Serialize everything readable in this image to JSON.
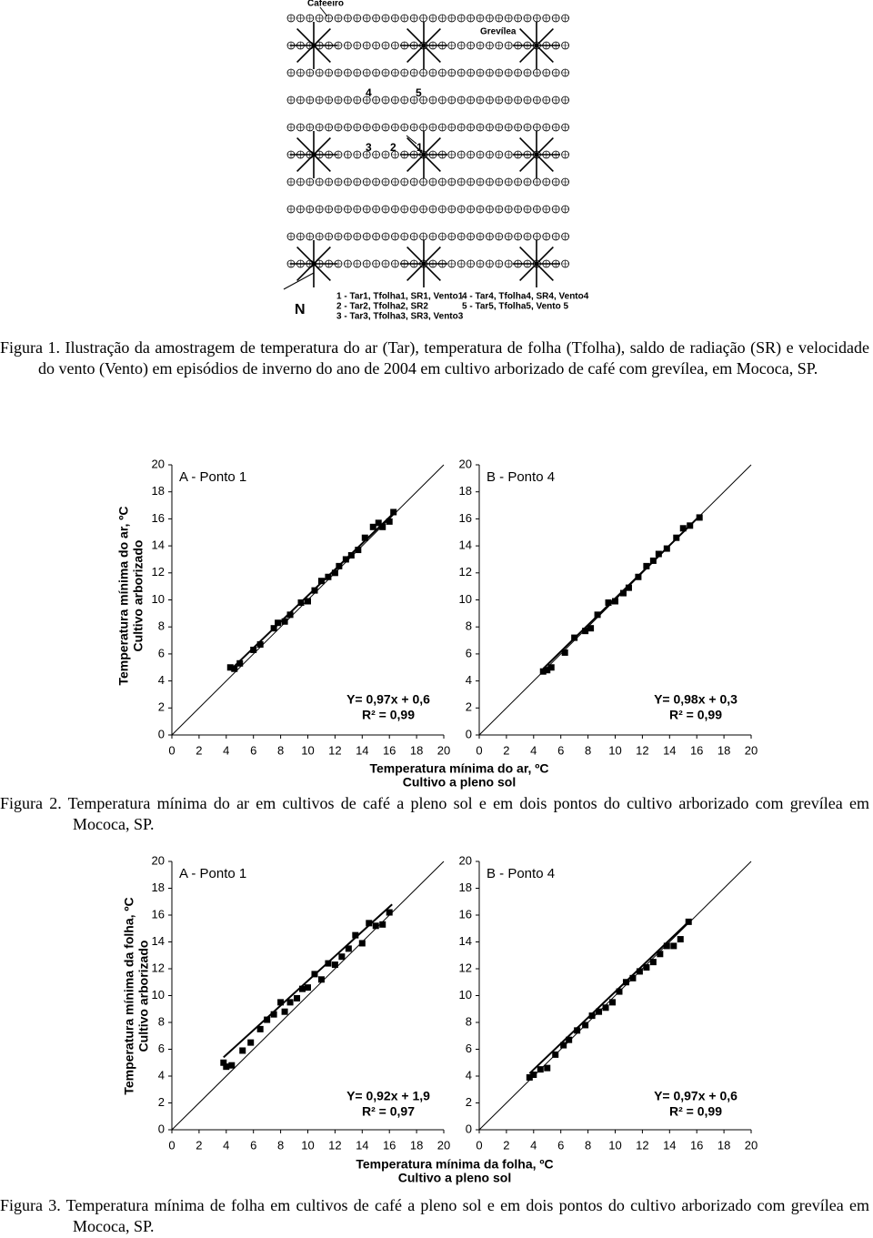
{
  "figure1": {
    "cafeeiro": "Cafeeiro",
    "grevilea": "Grevílea",
    "north": "N",
    "points": [
      "4",
      "5",
      "3",
      "2",
      "1"
    ],
    "legend": [
      "1 - Tar1, Tfolha1, SR1, Vento1",
      "2 - Tar2, Tfolha2, SR2",
      "3 - Tar3, Tfolha3, SR3, Vento3",
      "4 - Tar4, Tfolha4, SR4, Vento4",
      "5 - Tar5, Tfolha5, Vento 5"
    ],
    "caption": "Figura 1. Ilustração da amostragem de temperatura do ar (Tar), temperatura de folha (Tfolha), saldo de radiação (SR) e velocidade do vento (Vento) em episódios de inverno do ano de 2004 em cultivo arborizado de café com grevílea, em Mococa, SP."
  },
  "figure2": {
    "y_label": [
      "Temperatura mínima do ar, ºC",
      "Cultivo arborizado"
    ],
    "x_label": [
      "Temperatura mínima do ar, ºC",
      "Cultivo a pleno sol"
    ],
    "caption": "Figura 2. Temperatura mínima do ar em cultivos de café a pleno sol e em dois pontos do cultivo arborizado com grevílea em Mococa, SP."
  },
  "figure3": {
    "y_label": [
      "Temperatura mínima da folha, ºC",
      "Cultivo arborizado"
    ],
    "x_label": [
      "Temperatura mínima da folha, ºC",
      "Cultivo a pleno sol"
    ],
    "caption": "Figura 3. Temperatura mínima de folha em cultivos de café a pleno sol e em dois pontos do cultivo arborizado com grevílea em Mococa, SP."
  },
  "chart_data": [
    {
      "type": "scatter",
      "title": "A - Ponto 1",
      "equation": "Y= 0,97x + 0,6",
      "r2": "R² = 0,99",
      "color": "#000000",
      "xlim": [
        0,
        20
      ],
      "ylim": [
        0,
        20
      ],
      "xticks": [
        0,
        2,
        4,
        6,
        8,
        10,
        12,
        14,
        16,
        18,
        20
      ],
      "yticks": [
        0,
        2,
        4,
        6,
        8,
        10,
        12,
        14,
        16,
        18,
        20
      ],
      "x": [
        4.3,
        4.6,
        5,
        6,
        6.5,
        7.5,
        7.8,
        8.3,
        8.7,
        9.5,
        10,
        10.5,
        11,
        11.5,
        12,
        12.3,
        12.8,
        13.2,
        13.7,
        14.2,
        14.8,
        15.2,
        15.5,
        16,
        16.3
      ],
      "values": [
        5,
        4.9,
        5.3,
        6.3,
        6.7,
        7.9,
        8.3,
        8.4,
        8.9,
        9.8,
        9.9,
        10.7,
        11.4,
        11.7,
        12,
        12.5,
        13,
        13.3,
        13.7,
        14.6,
        15.4,
        15.7,
        15.4,
        15.8,
        16.5
      ],
      "fit": {
        "x": [
          4.3,
          16.5
        ],
        "y": [
          4.8,
          16.6
        ]
      }
    },
    {
      "type": "scatter",
      "title": "B - Ponto 4",
      "equation": "Y= 0,98x + 0,3",
      "r2": "R² = 0,99",
      "color": "#000000",
      "xlim": [
        0,
        20
      ],
      "ylim": [
        0,
        20
      ],
      "xticks": [
        0,
        2,
        4,
        6,
        8,
        10,
        12,
        14,
        16,
        18,
        20
      ],
      "yticks": [
        0,
        2,
        4,
        6,
        8,
        10,
        12,
        14,
        16,
        18,
        20
      ],
      "x": [
        4.7,
        5,
        5.3,
        6.3,
        7,
        7.8,
        8.2,
        8.7,
        9.5,
        10,
        10.6,
        11,
        11.7,
        12.3,
        12.8,
        13.2,
        13.8,
        14.5,
        15,
        15.5,
        16.2
      ],
      "values": [
        4.7,
        4.8,
        5,
        6.1,
        7.2,
        7.7,
        7.9,
        8.9,
        9.8,
        9.9,
        10.5,
        10.9,
        11.7,
        12.5,
        12.9,
        13.4,
        13.8,
        14.6,
        15.3,
        15.5,
        16.1
      ],
      "fit": {
        "x": [
          4.7,
          16.2
        ],
        "y": [
          4.9,
          16.2
        ]
      }
    },
    {
      "type": "scatter",
      "title": "A - Ponto 1",
      "equation": "Y= 0,92x + 1,9",
      "r2": "R² = 0,97",
      "color": "#000000",
      "xlim": [
        0,
        20
      ],
      "ylim": [
        0,
        20
      ],
      "xticks": [
        0,
        2,
        4,
        6,
        8,
        10,
        12,
        14,
        16,
        18,
        20
      ],
      "yticks": [
        0,
        2,
        4,
        6,
        8,
        10,
        12,
        14,
        16,
        18,
        20
      ],
      "x": [
        3.8,
        4,
        4.4,
        5.2,
        5.8,
        6.5,
        7,
        7.5,
        8,
        8.3,
        8.7,
        9.2,
        9.6,
        10,
        10.5,
        11,
        11.5,
        12,
        12.5,
        13,
        13.5,
        14,
        14.5,
        15,
        15.5,
        16
      ],
      "values": [
        5,
        4.7,
        4.8,
        5.9,
        6.5,
        7.5,
        8.2,
        8.6,
        9.5,
        8.8,
        9.5,
        9.8,
        10.5,
        10.6,
        11.6,
        11.2,
        12.4,
        12.3,
        12.9,
        13.5,
        14.5,
        13.9,
        15.4,
        15.2,
        15.3,
        16.2
      ],
      "fit": {
        "x": [
          3.8,
          16.2
        ],
        "y": [
          5.4,
          16.8
        ]
      }
    },
    {
      "type": "scatter",
      "title": "B - Ponto 4",
      "equation": "Y= 0,97x + 0,6",
      "r2": "R² = 0,99",
      "color": "#000000",
      "xlim": [
        0,
        20
      ],
      "ylim": [
        0,
        20
      ],
      "xticks": [
        0,
        2,
        4,
        6,
        8,
        10,
        12,
        14,
        16,
        18,
        20
      ],
      "yticks": [
        0,
        2,
        4,
        6,
        8,
        10,
        12,
        14,
        16,
        18,
        20
      ],
      "x": [
        3.7,
        4,
        4.5,
        5,
        5.6,
        6.2,
        6.6,
        7.2,
        7.8,
        8.3,
        8.8,
        9.3,
        9.8,
        10.3,
        10.8,
        11.3,
        11.8,
        12.3,
        12.8,
        13.3,
        13.8,
        14.3,
        14.8,
        15.4
      ],
      "values": [
        3.9,
        4.1,
        4.5,
        4.6,
        5.6,
        6.3,
        6.7,
        7.4,
        7.8,
        8.5,
        8.8,
        9.1,
        9.5,
        10.3,
        11,
        11.3,
        11.8,
        12.1,
        12.5,
        13.1,
        13.7,
        13.7,
        14.2,
        15.5
      ],
      "fit": {
        "x": [
          3.7,
          15.5
        ],
        "y": [
          4.2,
          15.6
        ]
      }
    }
  ]
}
